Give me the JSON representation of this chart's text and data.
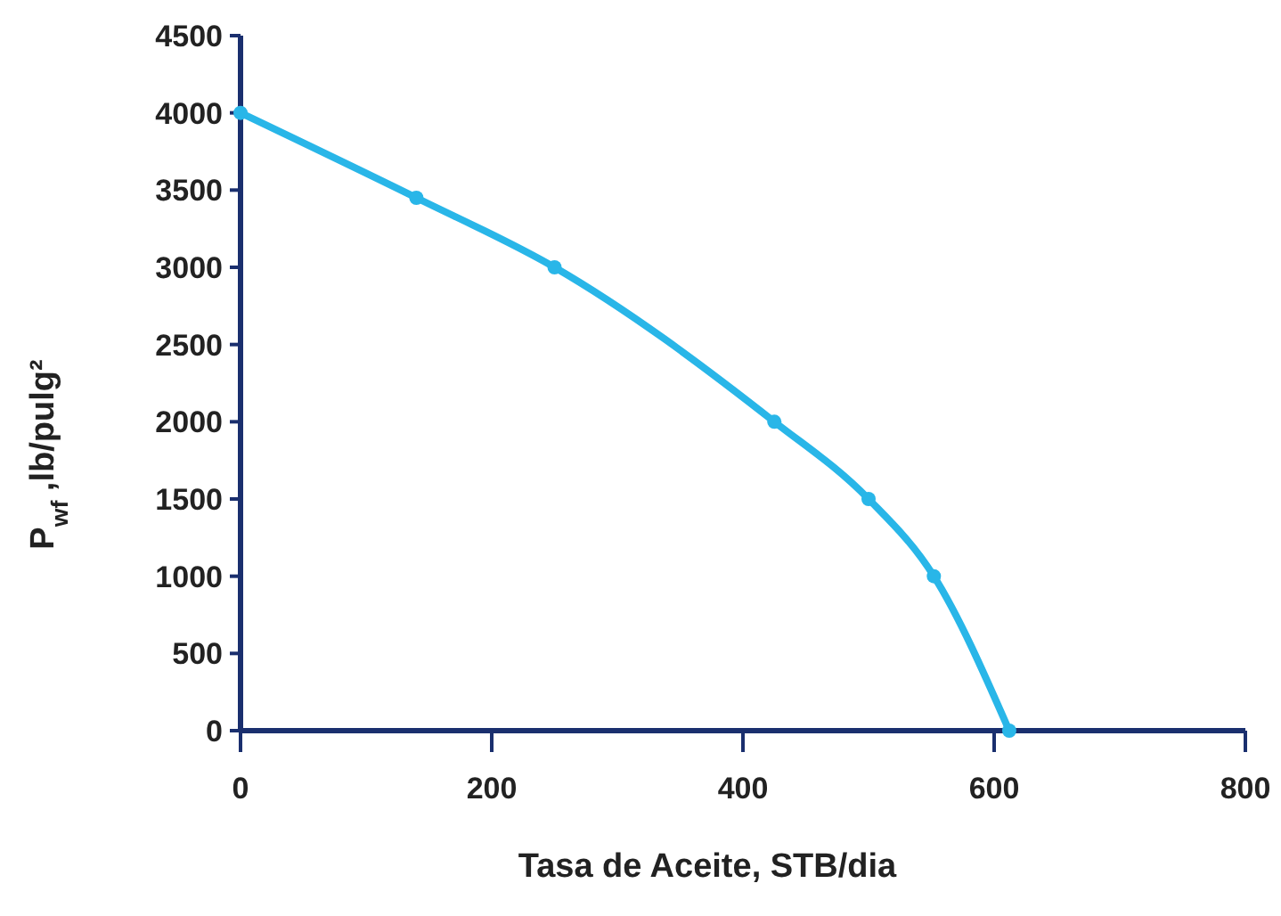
{
  "chart_data": {
    "type": "line",
    "xlabel": "Tasa de Aceite, STB/dia",
    "ylabel": "P$_{wf}$ ,lb/pulg²",
    "x": [
      0,
      140,
      250,
      425,
      500,
      552,
      612
    ],
    "series": [
      {
        "color": "#29b6e8",
        "values": [
          4000,
          3450,
          3000,
          2000,
          1500,
          1000,
          0
        ]
      }
    ],
    "xlim": [
      0,
      800
    ],
    "xticks": [
      0,
      200,
      400,
      600,
      800
    ],
    "ylim": [
      0,
      4500
    ],
    "yticks": [
      0,
      500,
      1000,
      1500,
      2000,
      2500,
      3000,
      3500,
      4000,
      4500
    ],
    "grid": false,
    "marker": "circle",
    "line_style": "solid"
  }
}
